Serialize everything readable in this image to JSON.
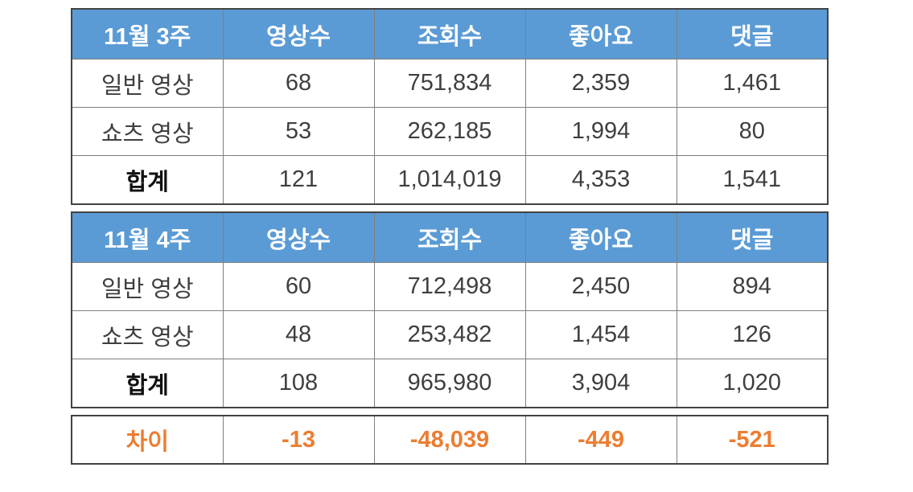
{
  "colors": {
    "header_bg": "#5B9BD5",
    "header_text": "#FFFFFF",
    "body_text": "#3F3F3F",
    "total_label_text": "#111111",
    "diff_text": "#ED7D31",
    "border_outer": "#424242",
    "border_inner": "#7F7F7F"
  },
  "tables": [
    {
      "id": "week3",
      "headers": [
        "11월 3주",
        "영상수",
        "조회수",
        "좋아요",
        "댓글"
      ],
      "rows": [
        {
          "label": "일반 영상",
          "values": [
            "68",
            "751,834",
            "2,359",
            "1,461"
          ]
        },
        {
          "label": "쇼츠 영상",
          "values": [
            "53",
            "262,185",
            "1,994",
            "80"
          ]
        },
        {
          "label": "합계",
          "values": [
            "121",
            "1,014,019",
            "4,353",
            "1,541"
          ]
        }
      ]
    },
    {
      "id": "week4",
      "headers": [
        "11월 4주",
        "영상수",
        "조회수",
        "좋아요",
        "댓글"
      ],
      "rows": [
        {
          "label": "일반 영상",
          "values": [
            "60",
            "712,498",
            "2,450",
            "894"
          ]
        },
        {
          "label": "쇼츠 영상",
          "values": [
            "48",
            "253,482",
            "1,454",
            "126"
          ]
        },
        {
          "label": "합계",
          "values": [
            "108",
            "965,980",
            "3,904",
            "1,020"
          ]
        }
      ]
    }
  ],
  "diff_row": {
    "label": "차이",
    "values": [
      "-13",
      "-48,039",
      "-449",
      "-521"
    ]
  },
  "chart_data": [
    {
      "type": "table",
      "title": "11월 3주",
      "columns": [
        "11월 3주",
        "영상수",
        "조회수",
        "좋아요",
        "댓글"
      ],
      "rows": [
        [
          "일반 영상",
          68,
          751834,
          2359,
          1461
        ],
        [
          "쇼츠 영상",
          53,
          262185,
          1994,
          80
        ],
        [
          "합계",
          121,
          1014019,
          4353,
          1541
        ]
      ]
    },
    {
      "type": "table",
      "title": "11월 4주",
      "columns": [
        "11월 4주",
        "영상수",
        "조회수",
        "좋아요",
        "댓글"
      ],
      "rows": [
        [
          "일반 영상",
          60,
          712498,
          2450,
          894
        ],
        [
          "쇼츠 영상",
          48,
          253482,
          1454,
          126
        ],
        [
          "합계",
          108,
          965980,
          3904,
          1020
        ]
      ]
    },
    {
      "type": "table",
      "title": "차이",
      "columns": [
        "차이",
        "영상수",
        "조회수",
        "좋아요",
        "댓글"
      ],
      "rows": [
        [
          "차이",
          -13,
          -48039,
          -449,
          -521
        ]
      ]
    }
  ]
}
